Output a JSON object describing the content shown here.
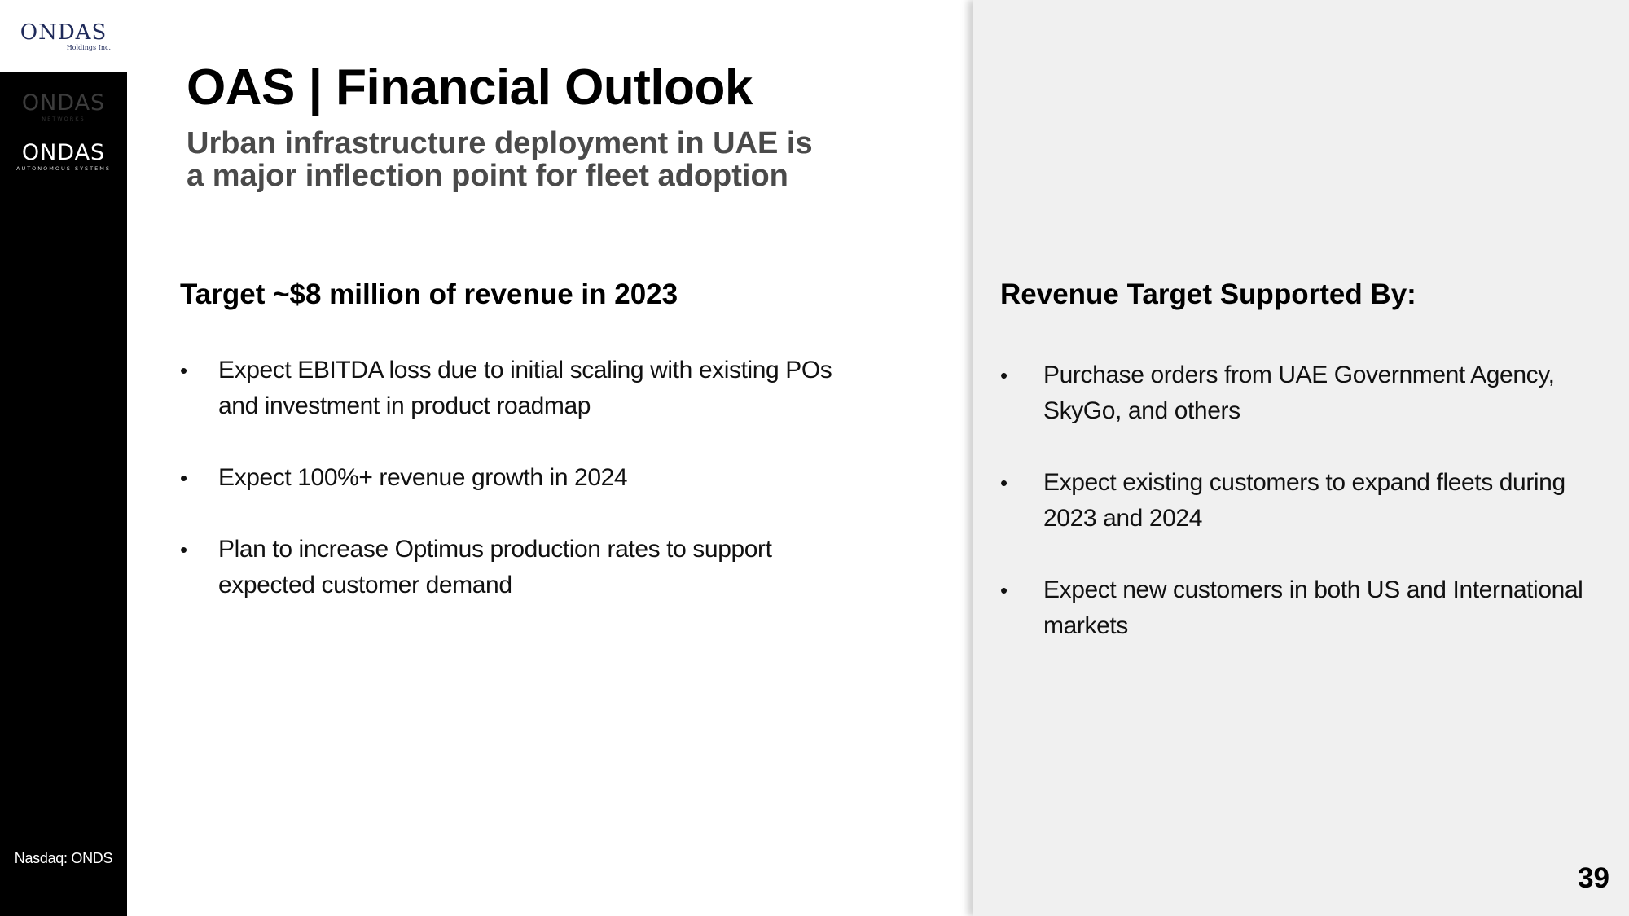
{
  "logos": {
    "top": {
      "word": "ONDAS",
      "sub": "Holdings Inc."
    },
    "networks": {
      "word": "ONDAS",
      "tag": "NETWORKS"
    },
    "autonomous": {
      "word": "ONDAS",
      "tag": "AUTONOMOUS SYSTEMS"
    }
  },
  "sidebar": {
    "ticker": "Nasdaq: ONDS"
  },
  "slide": {
    "title": "OAS | Financial Outlook",
    "subtitle_lines": [
      "Urban infrastructure deployment in UAE is",
      "a major inflection point for fleet adoption"
    ],
    "page_number": "39"
  },
  "left_column": {
    "heading": "Target ~$8 million of revenue in 2023",
    "bullets": [
      "Expect EBITDA loss due to initial scaling with existing POs and investment in product roadmap",
      "Expect 100%+ revenue growth in 2024",
      "Plan to increase Optimus production rates to support expected customer demand"
    ]
  },
  "right_column": {
    "heading": "Revenue Target Supported By:",
    "bullets": [
      "Purchase orders from UAE Government Agency, SkyGo, and others",
      "Expect existing customers to expand fleets during 2023 and 2024",
      "Expect new customers in both US and International markets"
    ]
  },
  "colors": {
    "sidebar": "#000000",
    "right_panel": "#f0f0f0",
    "logo_navy": "#1f2a5a",
    "subtitle_gray": "#4a4a4a"
  }
}
